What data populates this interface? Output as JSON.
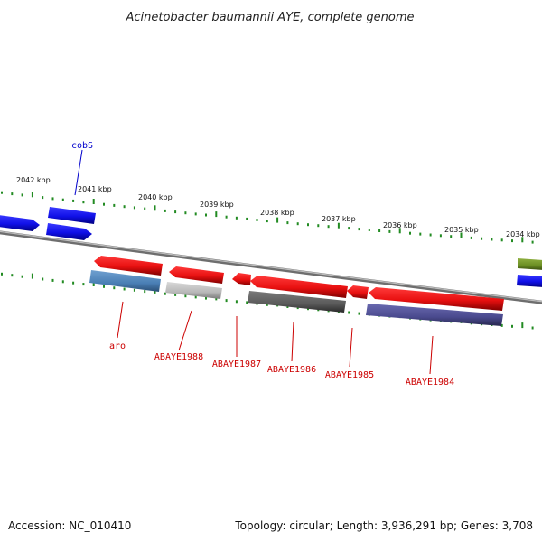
{
  "title": "Acinetobacter baumannii AYE, complete genome",
  "footer": {
    "accession": "Accession: NC_010410",
    "topology": "Topology: circular; Length: 3,936,291 bp; Genes: 3,708"
  },
  "scale_labels": [
    "2042 kbp",
    "2041 kbp",
    "2040 kbp",
    "2039 kbp",
    "2038 kbp",
    "2037 kbp",
    "2036 kbp",
    "2035 kbp",
    "2034 kbp"
  ],
  "gene_labels": [
    {
      "text": "cobS",
      "color": "#0000cc"
    },
    {
      "text": "aro",
      "color": "#cc0000"
    },
    {
      "text": "ABAYE1988",
      "color": "#cc0000"
    },
    {
      "text": "ABAYE1987",
      "color": "#cc0000"
    },
    {
      "text": "ABAYE1986",
      "color": "#cc0000"
    },
    {
      "text": "ABAYE1985",
      "color": "#cc0000"
    },
    {
      "text": "ABAYE1984",
      "color": "#cc0000"
    }
  ],
  "colors": {
    "forward_strand": "#1010e8",
    "reverse_strand": "#e81010",
    "backbone": "#808080",
    "ticks": "#228b22",
    "steelblue_feature": "#4a7fb5",
    "lightgray_feature": "#b8b8b8",
    "darkgray_feature": "#5a5a5a",
    "purple_feature": "#4a4a8e",
    "olive_feature": "#6b8e23"
  }
}
